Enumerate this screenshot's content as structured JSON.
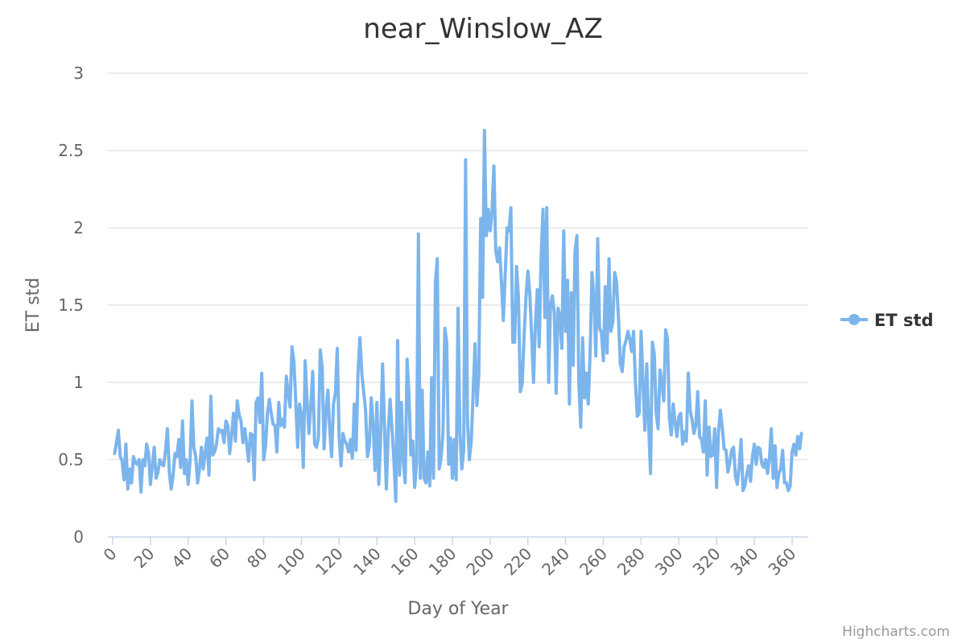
{
  "credits": "Highcharts.com",
  "colors": {
    "series": "#7cb5ec",
    "grid": "#e6e6e6",
    "axis": "#ccd6eb"
  },
  "chart_data": {
    "type": "line",
    "title": "near_Winslow_AZ",
    "xlabel": "Day of Year",
    "ylabel": "ET std",
    "xlim": [
      0,
      366
    ],
    "ylim": [
      0,
      3
    ],
    "x_ticks": [
      "0",
      "20",
      "40",
      "60",
      "80",
      "100",
      "120",
      "140",
      "160",
      "180",
      "200",
      "220",
      "240",
      "260",
      "280",
      "300",
      "320",
      "340",
      "360"
    ],
    "y_ticks": [
      "0",
      "0.5",
      "1",
      "1.5",
      "2",
      "2.5",
      "3"
    ],
    "grid": true,
    "legend": "right",
    "series": [
      {
        "name": "ET std",
        "x_start": 1,
        "values": [
          0.54,
          0.61,
          0.69,
          0.52,
          0.49,
          0.37,
          0.6,
          0.31,
          0.44,
          0.35,
          0.52,
          0.48,
          0.47,
          0.5,
          0.29,
          0.5,
          0.46,
          0.6,
          0.54,
          0.34,
          0.46,
          0.58,
          0.38,
          0.42,
          0.5,
          0.47,
          0.46,
          0.56,
          0.7,
          0.42,
          0.31,
          0.4,
          0.54,
          0.52,
          0.63,
          0.45,
          0.75,
          0.41,
          0.5,
          0.34,
          0.49,
          0.88,
          0.58,
          0.52,
          0.35,
          0.44,
          0.58,
          0.44,
          0.55,
          0.64,
          0.4,
          0.91,
          0.53,
          0.55,
          0.6,
          0.7,
          0.68,
          0.69,
          0.61,
          0.75,
          0.72,
          0.54,
          0.66,
          0.8,
          0.62,
          0.88,
          0.79,
          0.75,
          0.61,
          0.7,
          0.6,
          0.49,
          0.67,
          0.66,
          0.37,
          0.87,
          0.9,
          0.74,
          1.06,
          0.5,
          0.59,
          0.8,
          0.89,
          0.8,
          0.73,
          0.72,
          0.55,
          0.87,
          0.72,
          0.76,
          0.71,
          1.04,
          0.93,
          0.84,
          1.23,
          1.14,
          0.88,
          0.58,
          0.86,
          0.79,
          0.45,
          1.14,
          0.88,
          0.67,
          0.86,
          1.07,
          0.6,
          0.58,
          0.64,
          1.21,
          1.1,
          0.57,
          0.8,
          0.95,
          0.7,
          0.52,
          0.86,
          0.93,
          1.22,
          0.64,
          0.46,
          0.67,
          0.62,
          0.6,
          0.55,
          0.63,
          0.51,
          0.86,
          0.56,
          1.07,
          1.29,
          1.06,
          0.94,
          0.82,
          0.52,
          0.59,
          0.9,
          0.73,
          0.43,
          0.87,
          0.34,
          0.65,
          1.12,
          0.72,
          0.31,
          0.68,
          0.89,
          0.7,
          0.5,
          0.23,
          1.27,
          0.4,
          0.87,
          0.49,
          0.35,
          1.15,
          0.92,
          0.53,
          0.62,
          0.32,
          0.47,
          1.96,
          0.38,
          0.95,
          0.38,
          0.35,
          0.55,
          0.33,
          1.03,
          0.38,
          1.65,
          1.8,
          0.44,
          0.51,
          0.67,
          1.35,
          1.26,
          0.47,
          0.64,
          0.38,
          0.63,
          0.37,
          1.48,
          0.68,
          0.44,
          0.56,
          2.44,
          0.75,
          0.5,
          0.62,
          0.93,
          1.25,
          0.85,
          1.06,
          2.06,
          1.55,
          2.63,
          1.95,
          2.12,
          1.98,
          2.1,
          2.4,
          1.85,
          1.78,
          1.87,
          1.65,
          1.4,
          1.7,
          2.0,
          1.98,
          2.13,
          1.26,
          1.26,
          1.75,
          1.55,
          0.94,
          0.99,
          1.3,
          1.55,
          1.72,
          1.58,
          1.3,
          1.0,
          1.38,
          1.6,
          1.23,
          1.8,
          2.12,
          1.42,
          2.13,
          1.0,
          1.5,
          1.56,
          1.45,
          0.93,
          1.48,
          1.42,
          1.22,
          1.98,
          1.33,
          1.66,
          0.86,
          1.58,
          1.11,
          1.85,
          1.95,
          1.0,
          0.71,
          1.29,
          0.9,
          1.06,
          0.86,
          1.2,
          1.71,
          1.55,
          1.17,
          1.93,
          1.35,
          1.32,
          1.14,
          1.62,
          1.19,
          1.8,
          1.33,
          1.39,
          1.71,
          1.65,
          1.42,
          1.12,
          1.07,
          1.23,
          1.27,
          1.33,
          1.28,
          1.2,
          1.33,
          1.0,
          0.78,
          0.8,
          1.33,
          1.0,
          0.69,
          1.12,
          0.72,
          0.41,
          1.26,
          1.18,
          0.8,
          0.7,
          1.08,
          1.0,
          0.88,
          1.34,
          1.28,
          0.77,
          0.66,
          0.86,
          0.74,
          0.65,
          0.78,
          0.8,
          0.6,
          0.68,
          0.62,
          1.06,
          0.82,
          0.76,
          0.67,
          0.72,
          0.94,
          0.65,
          0.63,
          0.55,
          0.88,
          0.4,
          0.71,
          0.52,
          0.53,
          0.7,
          0.32,
          0.68,
          0.82,
          0.71,
          0.57,
          0.56,
          0.42,
          0.48,
          0.56,
          0.58,
          0.39,
          0.34,
          0.46,
          0.63,
          0.3,
          0.33,
          0.41,
          0.46,
          0.36,
          0.52,
          0.6,
          0.47,
          0.58,
          0.57,
          0.47,
          0.45,
          0.5,
          0.41,
          0.51,
          0.7,
          0.38,
          0.59,
          0.32,
          0.41,
          0.44,
          0.56,
          0.35,
          0.35,
          0.3,
          0.33,
          0.55,
          0.6,
          0.53,
          0.65,
          0.57,
          0.67
        ]
      }
    ]
  }
}
